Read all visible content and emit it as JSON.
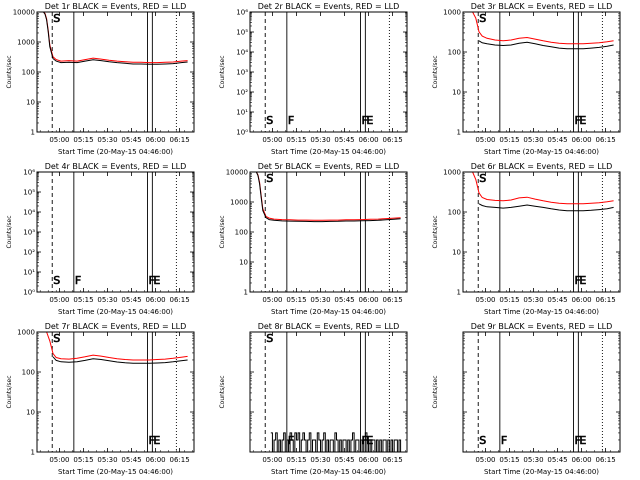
{
  "figure": {
    "xlabel": "Start Time (20-May-15 04:46:00)",
    "ylabel": "Counts/sec",
    "x_ticks": [
      "05:00",
      "05:15",
      "05:30",
      "05:45",
      "06:00",
      "06:15"
    ],
    "x_tick_values_min": [
      14,
      29,
      44,
      59,
      74,
      89
    ],
    "x_range_min": [
      0,
      98
    ],
    "markers": [
      {
        "label": "S",
        "t_min": 9.5,
        "style": "dashed"
      },
      {
        "label": "F",
        "t_min": 23,
        "style": "solid"
      },
      {
        "label": "F",
        "t_min": 69,
        "style": "solid"
      },
      {
        "label": "E",
        "t_min": 72,
        "style": "solid"
      },
      {
        "label": "",
        "t_min": 87,
        "style": "dotted"
      }
    ],
    "colors": {
      "events": "#000000",
      "lld": "#ff0000"
    }
  },
  "chart_data": [
    {
      "type": "line",
      "title": "Det 1r BLACK = Events, RED = LLD",
      "yscale": "log",
      "ylim": [
        1,
        10000
      ],
      "y_tick_labels": [
        "1",
        "10",
        "100",
        "1000",
        "10000"
      ],
      "y_tick_values": [
        1,
        10,
        100,
        1000,
        10000
      ],
      "marker_labels": [
        "S",
        "",
        "",
        "",
        ""
      ],
      "series": [
        {
          "color": "red",
          "x": [
            0,
            2,
            4,
            5,
            6,
            7,
            8,
            10,
            12,
            15,
            20,
            25,
            30,
            35,
            40,
            45,
            50,
            55,
            60,
            65,
            70,
            75,
            80,
            85,
            90,
            94
          ],
          "y": [
            10000,
            10000,
            10000,
            9000,
            6000,
            2500,
            800,
            320,
            260,
            230,
            240,
            230,
            260,
            290,
            270,
            245,
            230,
            220,
            210,
            210,
            205,
            205,
            210,
            215,
            230,
            240
          ]
        },
        {
          "color": "black",
          "x": [
            0,
            2,
            4,
            5,
            6,
            7,
            8,
            10,
            12,
            15,
            20,
            25,
            30,
            35,
            40,
            45,
            50,
            55,
            60,
            65,
            70,
            75,
            80,
            85,
            90,
            94
          ],
          "y": [
            10000,
            10000,
            10000,
            8500,
            5500,
            2200,
            700,
            280,
            230,
            205,
            210,
            205,
            230,
            255,
            240,
            220,
            205,
            195,
            185,
            185,
            180,
            180,
            185,
            190,
            205,
            215
          ]
        }
      ]
    },
    {
      "type": "line",
      "title": "Det 2r BLACK = Events, RED = LLD",
      "yscale": "log",
      "ylim": [
        1,
        1000000
      ],
      "y_tick_labels": [
        "10⁰",
        "10¹",
        "10²",
        "10³",
        "10⁴",
        "10⁵",
        "10⁶"
      ],
      "y_tick_values": [
        1,
        10,
        100,
        1000,
        10000,
        100000,
        1000000
      ],
      "marker_labels": [
        "S",
        "F",
        "F",
        "E",
        ""
      ],
      "series": []
    },
    {
      "type": "line",
      "title": "Det 3r BLACK = Events, RED = LLD",
      "yscale": "log",
      "ylim": [
        1,
        1000
      ],
      "y_tick_labels": [
        "1",
        "10",
        "100",
        "1000"
      ],
      "y_tick_values": [
        1,
        10,
        100,
        1000
      ],
      "marker_labels": [
        "S",
        "",
        "F",
        "E",
        ""
      ],
      "series": [
        {
          "color": "red",
          "x": [
            0,
            2,
            4,
            6,
            8,
            10,
            12,
            15,
            20,
            25,
            30,
            35,
            40,
            45,
            50,
            55,
            60,
            65,
            70,
            75,
            80,
            85,
            90,
            94
          ],
          "y": [
            1000,
            1000,
            1000,
            1000,
            700,
            320,
            250,
            220,
            200,
            190,
            200,
            220,
            230,
            210,
            190,
            175,
            165,
            160,
            160,
            160,
            165,
            170,
            180,
            190
          ]
        },
        {
          "color": "black",
          "x": [
            10,
            12,
            15,
            20,
            25,
            30,
            35,
            40,
            45,
            50,
            55,
            60,
            65,
            70,
            75,
            80,
            85,
            90,
            94
          ],
          "y": [
            190,
            170,
            160,
            150,
            145,
            150,
            165,
            175,
            160,
            145,
            135,
            125,
            120,
            120,
            120,
            125,
            130,
            140,
            150
          ]
        }
      ]
    },
    {
      "type": "line",
      "title": "Det 4r BLACK = Events, RED = LLD",
      "yscale": "log",
      "ylim": [
        1,
        1000000
      ],
      "y_tick_labels": [
        "10⁰",
        "10¹",
        "10²",
        "10³",
        "10⁴",
        "10⁵",
        "10⁶"
      ],
      "y_tick_values": [
        1,
        10,
        100,
        1000,
        10000,
        100000,
        1000000
      ],
      "marker_labels": [
        "S",
        "F",
        "F",
        "E",
        ""
      ],
      "series": []
    },
    {
      "type": "line",
      "title": "Det 5r BLACK = Events, RED = LLD",
      "yscale": "log",
      "ylim": [
        1,
        10000
      ],
      "y_tick_labels": [
        "1",
        "10",
        "100",
        "1000",
        "10000"
      ],
      "y_tick_values": [
        1,
        10,
        100,
        1000,
        10000
      ],
      "marker_labels": [
        "S",
        "",
        "",
        "",
        ""
      ],
      "series": [
        {
          "color": "red",
          "x": [
            0,
            2,
            4,
            5,
            6,
            7,
            8,
            10,
            12,
            15,
            20,
            25,
            30,
            35,
            40,
            45,
            50,
            55,
            60,
            65,
            70,
            75,
            80,
            85,
            90,
            94
          ],
          "y": [
            10000,
            10000,
            10000,
            8000,
            4500,
            1600,
            600,
            330,
            290,
            270,
            260,
            255,
            250,
            250,
            245,
            245,
            250,
            250,
            255,
            255,
            260,
            265,
            270,
            280,
            290,
            300
          ]
        },
        {
          "color": "black",
          "x": [
            0,
            2,
            4,
            5,
            6,
            7,
            8,
            10,
            12,
            15,
            20,
            25,
            30,
            35,
            40,
            45,
            50,
            55,
            60,
            65,
            70,
            75,
            80,
            85,
            90,
            94
          ],
          "y": [
            10000,
            10000,
            10000,
            7500,
            4000,
            1400,
            520,
            300,
            260,
            245,
            235,
            230,
            228,
            225,
            222,
            222,
            226,
            228,
            232,
            232,
            236,
            240,
            245,
            255,
            265,
            275
          ]
        }
      ]
    },
    {
      "type": "line",
      "title": "Det 6r BLACK = Events, RED = LLD",
      "yscale": "log",
      "ylim": [
        1,
        1000
      ],
      "y_tick_labels": [
        "1",
        "10",
        "100",
        "1000"
      ],
      "y_tick_values": [
        1,
        10,
        100,
        1000
      ],
      "marker_labels": [
        "S",
        "",
        "F",
        "E",
        ""
      ],
      "series": [
        {
          "color": "red",
          "x": [
            0,
            2,
            4,
            6,
            8,
            10,
            12,
            15,
            20,
            25,
            30,
            35,
            40,
            45,
            50,
            55,
            60,
            65,
            70,
            75,
            80,
            85,
            90,
            94
          ],
          "y": [
            1000,
            1000,
            1000,
            1000,
            650,
            300,
            230,
            205,
            195,
            190,
            200,
            225,
            235,
            210,
            190,
            175,
            165,
            160,
            160,
            160,
            165,
            170,
            180,
            190
          ]
        },
        {
          "color": "black",
          "x": [
            10,
            12,
            15,
            20,
            25,
            30,
            35,
            40,
            45,
            50,
            55,
            60,
            65,
            70,
            75,
            80,
            85,
            90,
            94
          ],
          "y": [
            160,
            145,
            135,
            130,
            125,
            130,
            140,
            150,
            140,
            130,
            120,
            112,
            108,
            108,
            108,
            110,
            115,
            120,
            130
          ]
        }
      ]
    },
    {
      "type": "line",
      "title": "Det 7r BLACK = Events, RED = LLD",
      "yscale": "log",
      "ylim": [
        1,
        1000
      ],
      "y_tick_labels": [
        "1",
        "10",
        "100",
        "1000"
      ],
      "y_tick_values": [
        1,
        10,
        100,
        1000
      ],
      "marker_labels": [
        "S",
        "",
        "F",
        "E",
        ""
      ],
      "series": [
        {
          "color": "red",
          "x": [
            0,
            2,
            4,
            6,
            8,
            10,
            12,
            15,
            20,
            25,
            30,
            35,
            40,
            45,
            50,
            55,
            60,
            65,
            70,
            75,
            80,
            85,
            90,
            94
          ],
          "y": [
            1000,
            1000,
            1000,
            1000,
            600,
            290,
            230,
            215,
            210,
            220,
            240,
            265,
            250,
            230,
            215,
            205,
            200,
            200,
            200,
            205,
            210,
            220,
            235,
            245
          ]
        },
        {
          "color": "black",
          "x": [
            10,
            12,
            15,
            20,
            25,
            30,
            35,
            40,
            45,
            50,
            55,
            60,
            65,
            70,
            75,
            80,
            85,
            90,
            94
          ],
          "y": [
            240,
            195,
            180,
            175,
            180,
            195,
            215,
            205,
            190,
            178,
            170,
            165,
            165,
            165,
            168,
            172,
            180,
            190,
            200
          ]
        }
      ]
    },
    {
      "type": "line",
      "title": "Det 8r BLACK = Events, RED = LLD",
      "yscale": "log",
      "ylim": [
        1,
        1000
      ],
      "y_tick_labels": [],
      "y_tick_values": [
        1,
        10,
        100,
        1000
      ],
      "marker_labels": [
        "S",
        "F",
        "F",
        "E",
        ""
      ],
      "series": [
        {
          "color": "black",
          "x": [
            13,
            14,
            15,
            16,
            17,
            18,
            19,
            20,
            21,
            22,
            23,
            24,
            25,
            26,
            27,
            28,
            29,
            30,
            31,
            32,
            33,
            34,
            35,
            36,
            37,
            38,
            39,
            40,
            41,
            42,
            43,
            44,
            45,
            46,
            47,
            48,
            49,
            50,
            51,
            52,
            53,
            54,
            55,
            56,
            57,
            58,
            59,
            60,
            61,
            62,
            63,
            64,
            65,
            66,
            67,
            68,
            69,
            70,
            71,
            72,
            73,
            74,
            75,
            76,
            77,
            78,
            79,
            80,
            81,
            82,
            83,
            84,
            85,
            86,
            87,
            88,
            89,
            90,
            91,
            92,
            93,
            94
          ],
          "y": [
            3,
            1,
            2,
            3,
            1,
            2,
            1,
            2,
            3,
            1,
            2,
            1,
            3,
            2,
            1,
            3,
            2,
            3,
            1,
            2,
            3,
            2,
            1,
            2,
            3,
            1,
            2,
            2,
            1,
            3,
            2,
            1,
            2,
            3,
            1,
            2,
            1,
            2,
            2,
            1,
            3,
            2,
            1,
            2,
            1,
            2,
            2,
            1,
            2,
            1,
            2,
            3,
            1,
            2,
            2,
            1,
            2,
            1,
            2,
            3,
            1,
            2,
            1,
            2,
            2,
            1,
            2,
            1,
            2,
            1,
            2,
            2,
            1,
            2,
            1,
            2,
            1,
            2,
            2,
            1,
            2,
            1
          ]
        }
      ]
    },
    {
      "type": "line",
      "title": "Det 9r BLACK = Events, RED = LLD",
      "yscale": "log",
      "ylim": [
        1,
        1000
      ],
      "y_tick_labels": [],
      "y_tick_values": [
        1,
        10,
        100,
        1000
      ],
      "marker_labels": [
        "S",
        "F",
        "F",
        "E",
        ""
      ],
      "series": []
    }
  ]
}
